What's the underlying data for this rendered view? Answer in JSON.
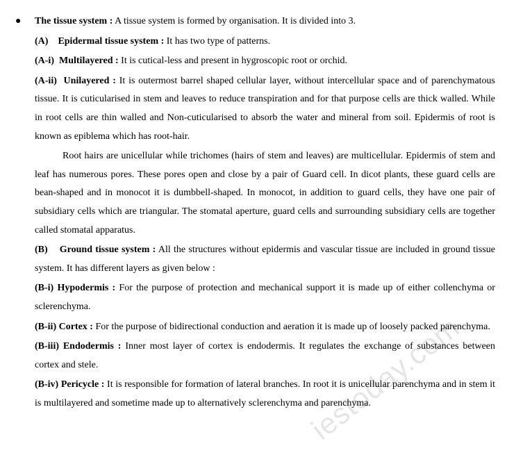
{
  "bullet_glyph": "●",
  "watermark": "iestoday.com",
  "sections": {
    "intro": {
      "label": "The tissue system :",
      "text": " A tissue system is formed by organisation. It is divided into 3."
    },
    "A": {
      "label": "(A)",
      "title": "Epidermal tissue system :",
      "text": " It has two type of patterns."
    },
    "Ai": {
      "label": "(A-i)",
      "title": "Multilayered :",
      "text": " It is cutical-less and present in hygroscopic root or orchid."
    },
    "Aii": {
      "label": "(A-ii)",
      "title": "Unilayered :",
      "text": " It is outermost barrel shaped cellular layer, without intercellular space and of parenchymatous tissue. It is cuticularised in stem and leaves to reduce transpiration and for that purpose cells are thick walled. While in root cells are thin walled and Non-cuticularised to absorb the water and mineral from soil. Epidermis of root is known as epiblema which has root-hair."
    },
    "Aii_p2": "Root hairs are unicellular while trichomes (hairs of stem and leaves) are multicellular. Epidermis of stem and leaf has numerous pores. These pores open and close by a pair of Guard cell. In dicot plants, these guard cells are bean-shaped and in monocot it is dumbbell-shaped. In monocot, in addition to guard cells, they have one pair of subsidiary cells which are triangular. The stomatal aperture, guard cells and surrounding subsidiary cells are together called stomatal apparatus.",
    "B": {
      "label": "(B)",
      "title": "Ground tissue system :",
      "text": " All the structures without epidermis and vascular tissue are included in ground tissue system. It has different layers as given below :"
    },
    "Bi": {
      "label": "(B-i)",
      "title": "Hypodermis :",
      "text": " For the purpose of protection and mechanical support it is made up of either collenchyma or sclerenchyma."
    },
    "Bii": {
      "label": "(B-ii)",
      "title": "Cortex :",
      "text": " For the purpose of bidirectional conduction and aeration it is made up of loosely packed parenchyma."
    },
    "Biii": {
      "label": "(B-iii)",
      "title": "Endodermis :",
      "text": " Inner most layer of cortex is endodermis. It regulates the exchange of substances between cortex and stele."
    },
    "Biv": {
      "label": "(B-iv)",
      "title": "Pericycle :",
      "text": " It is responsible for formation of lateral branches. In root it is unicellular parenchyma and in stem it is multilayered and sometime made up to alternatively sclerenchyma and parenchyma."
    }
  }
}
